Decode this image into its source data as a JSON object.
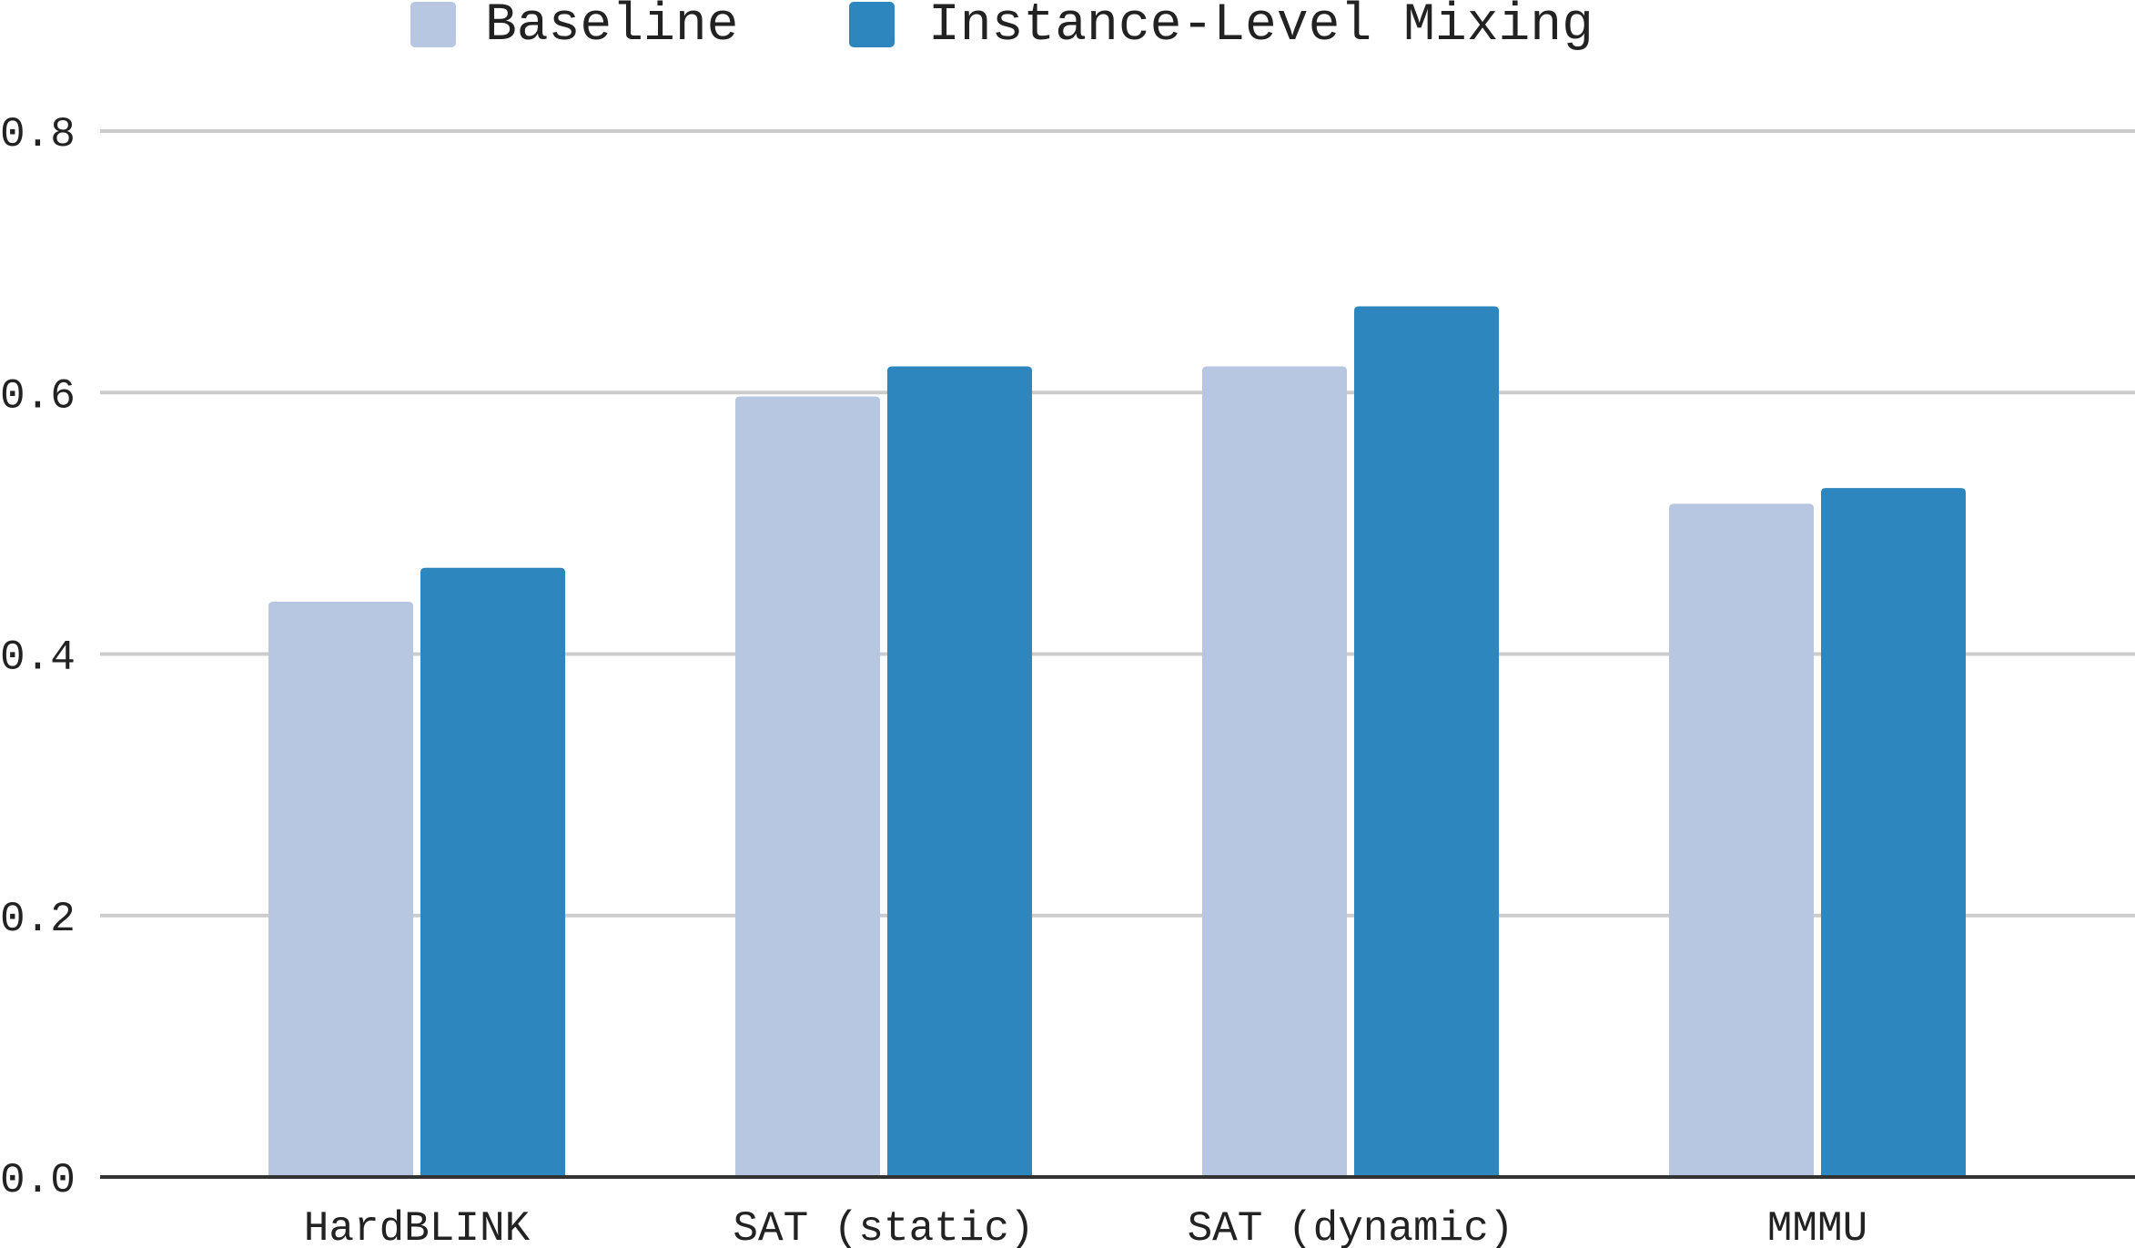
{
  "chart_data": {
    "type": "bar",
    "categories": [
      "HardBLINK",
      "SAT (static)",
      "SAT (dynamic)",
      "MMMU"
    ],
    "series": [
      {
        "name": "Baseline",
        "color": "#b7c7e1",
        "values": [
          0.44,
          0.597,
          0.62,
          0.515
        ]
      },
      {
        "name": "Instance-Level Mixing",
        "color": "#2d86bd",
        "values": [
          0.466,
          0.62,
          0.666,
          0.527
        ]
      }
    ],
    "ylim": [
      0,
      0.8
    ],
    "yticks": [
      "0.0",
      "0.2",
      "0.4",
      "0.6",
      "0.8"
    ],
    "ytick_values": [
      0,
      0.2,
      0.4,
      0.6,
      0.8
    ],
    "grid": true,
    "legend_position": "top",
    "gridline_color": "#cccccc",
    "axis_color": "#333333"
  }
}
